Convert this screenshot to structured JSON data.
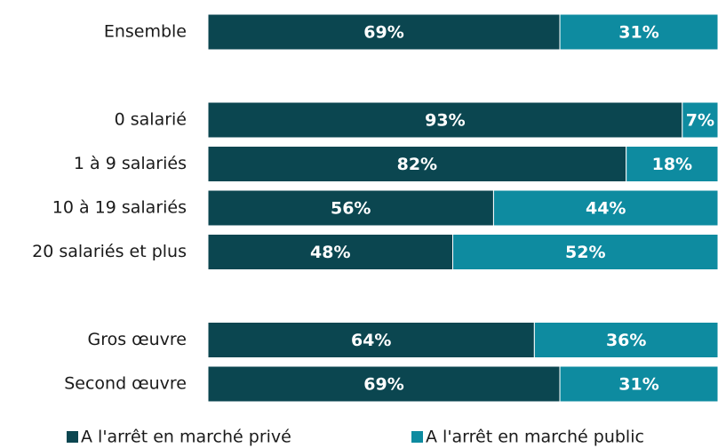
{
  "chart_data": {
    "type": "stacked-bar-horizontal",
    "categories": [
      "Ensemble",
      null,
      "0 salarié",
      "1 à 9 salariés",
      "10 à 19 salariés",
      "20 salariés et plus",
      null,
      "Gros œuvre",
      "Second œuvre"
    ],
    "series": [
      {
        "name": "A l'arrêt en marché privé",
        "color": "#0b4650",
        "values": [
          69,
          null,
          93,
          82,
          56,
          48,
          null,
          64,
          69
        ],
        "value_labels": [
          "69%",
          null,
          "93%",
          "82%",
          "56%",
          "48%",
          null,
          "64%",
          "69%"
        ]
      },
      {
        "name": "A l'arrêt en marché public",
        "color": "#0e8ba0",
        "values": [
          31,
          null,
          7,
          18,
          44,
          52,
          null,
          36,
          31
        ],
        "value_labels": [
          "31%",
          null,
          "7%",
          "18%",
          "44%",
          "52%",
          null,
          "36%",
          "31%"
        ]
      }
    ],
    "legend": "bottom"
  }
}
